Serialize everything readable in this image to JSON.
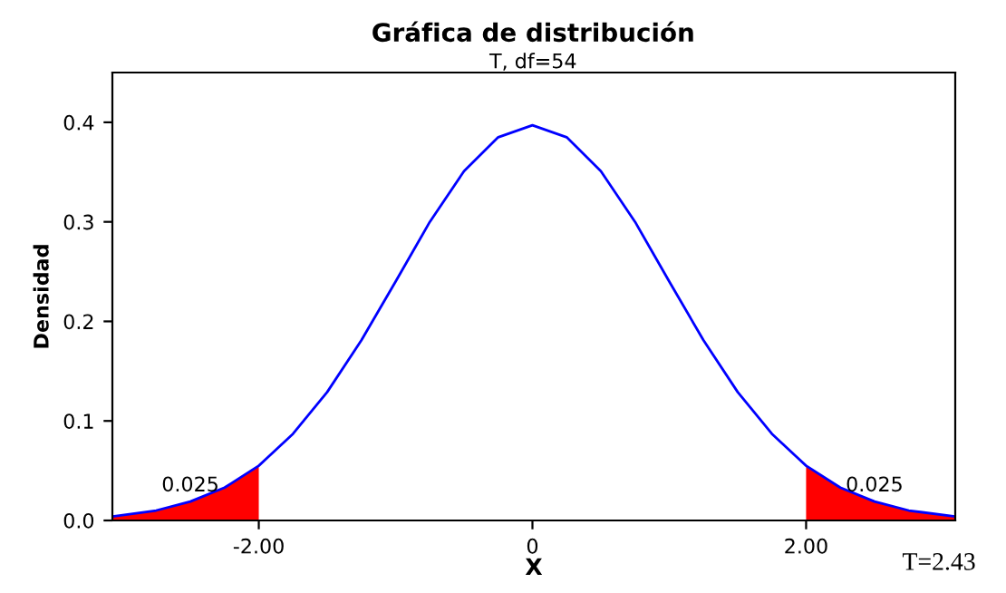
{
  "chart_data": {
    "type": "line",
    "title": "Gráfica de distribución",
    "subtitle": "T, df=54",
    "xlabel": "X",
    "ylabel": "Densidad",
    "xlim": [
      -3.07,
      3.09
    ],
    "ylim": [
      0,
      0.45
    ],
    "xticks": [
      {
        "value": -2,
        "label": "-2.00"
      },
      0,
      {
        "value": 2,
        "label": "2.00"
      }
    ],
    "yticks": [
      {
        "value": 0,
        "label": "0.0"
      },
      0.1,
      0.2,
      0.3,
      0.4
    ],
    "grid": false,
    "legend": false,
    "series": [
      {
        "color": "#0000ff",
        "x": [
          -3.07,
          -2.75,
          -2.5,
          -2.25,
          -2.0,
          -1.75,
          -1.5,
          -1.25,
          -1.0,
          -0.75,
          -0.5,
          -0.25,
          0,
          0.25,
          0.5,
          0.75,
          1.0,
          1.25,
          1.5,
          1.75,
          2.0,
          2.25,
          2.5,
          2.75,
          3.09
        ],
        "values": [
          0.004,
          0.01,
          0.019,
          0.033,
          0.055,
          0.087,
          0.129,
          0.181,
          0.24,
          0.3,
          0.351,
          0.385,
          0.397,
          0.385,
          0.351,
          0.3,
          0.24,
          0.181,
          0.129,
          0.087,
          0.055,
          0.033,
          0.019,
          0.01,
          0.004
        ]
      },
      {
        "type": "area",
        "color": "#ff0000",
        "x": [
          -3.07,
          -2.75,
          -2.5,
          -2.25,
          -2.0
        ],
        "values": [
          0.004,
          0.01,
          0.019,
          0.033,
          0.055
        ]
      },
      {
        "type": "area",
        "color": "#ff0000",
        "x": [
          2.0,
          2.25,
          2.5,
          2.75,
          3.09
        ],
        "values": [
          0.055,
          0.033,
          0.019,
          0.01,
          0.004
        ]
      }
    ],
    "annotations": [
      {
        "text": "0.025",
        "x": -2.5,
        "y": 0.025
      },
      {
        "text": "0.025",
        "x": 2.5,
        "y": 0.025
      },
      "T=2.43"
    ]
  }
}
